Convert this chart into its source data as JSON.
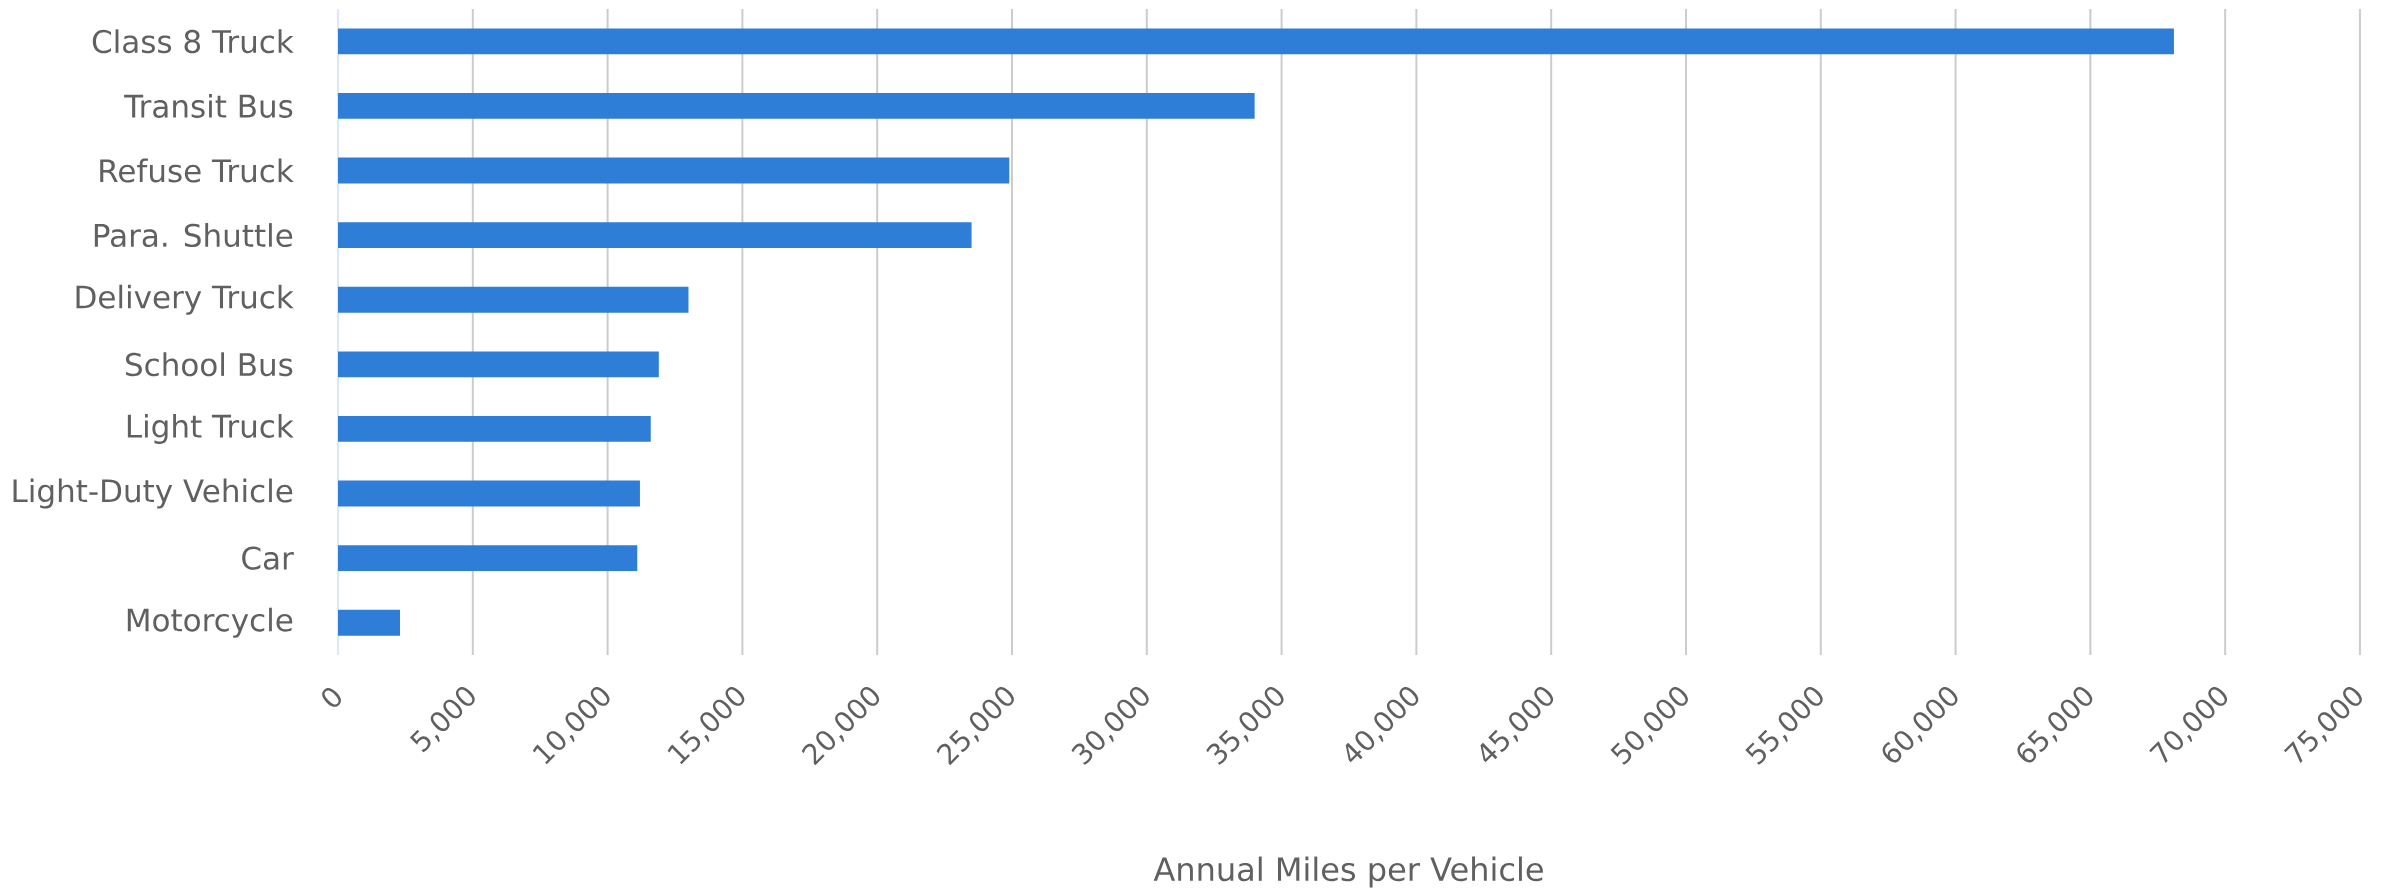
{
  "chart_data": {
    "type": "bar",
    "orientation": "horizontal",
    "xlabel": "Annual Miles per Vehicle",
    "categories": [
      "Class 8 Truck",
      "Transit Bus",
      "Refuse Truck",
      "Para. Shuttle",
      "Delivery Truck",
      "School Bus",
      "Light Truck",
      "Light-Duty Vehicle",
      "Car",
      "Motorcycle"
    ],
    "values": [
      68100,
      34000,
      24900,
      23500,
      13000,
      11900,
      11600,
      11200,
      11100,
      2300
    ],
    "color": "#2e7dd7",
    "xlim": [
      0,
      75000
    ],
    "xticks": [
      0,
      {
        "value": 5000,
        "label": "5,000"
      },
      {
        "value": 10000,
        "label": "10,000"
      },
      {
        "value": 15000,
        "label": "15,000"
      },
      {
        "value": 20000,
        "label": "20,000"
      },
      {
        "value": 25000,
        "label": "25,000"
      },
      {
        "value": 30000,
        "label": "30,000"
      },
      {
        "value": 35000,
        "label": "35,000"
      },
      {
        "value": 40000,
        "label": "40,000"
      },
      {
        "value": 45000,
        "label": "45,000"
      },
      {
        "value": 50000,
        "label": "50,000"
      },
      {
        "value": 55000,
        "label": "55,000"
      },
      {
        "value": 60000,
        "label": "60,000"
      },
      {
        "value": 65000,
        "label": "65,000"
      },
      {
        "value": 70000,
        "label": "70,000"
      },
      {
        "value": 75000,
        "label": "75,000"
      }
    ],
    "grid": "x"
  }
}
